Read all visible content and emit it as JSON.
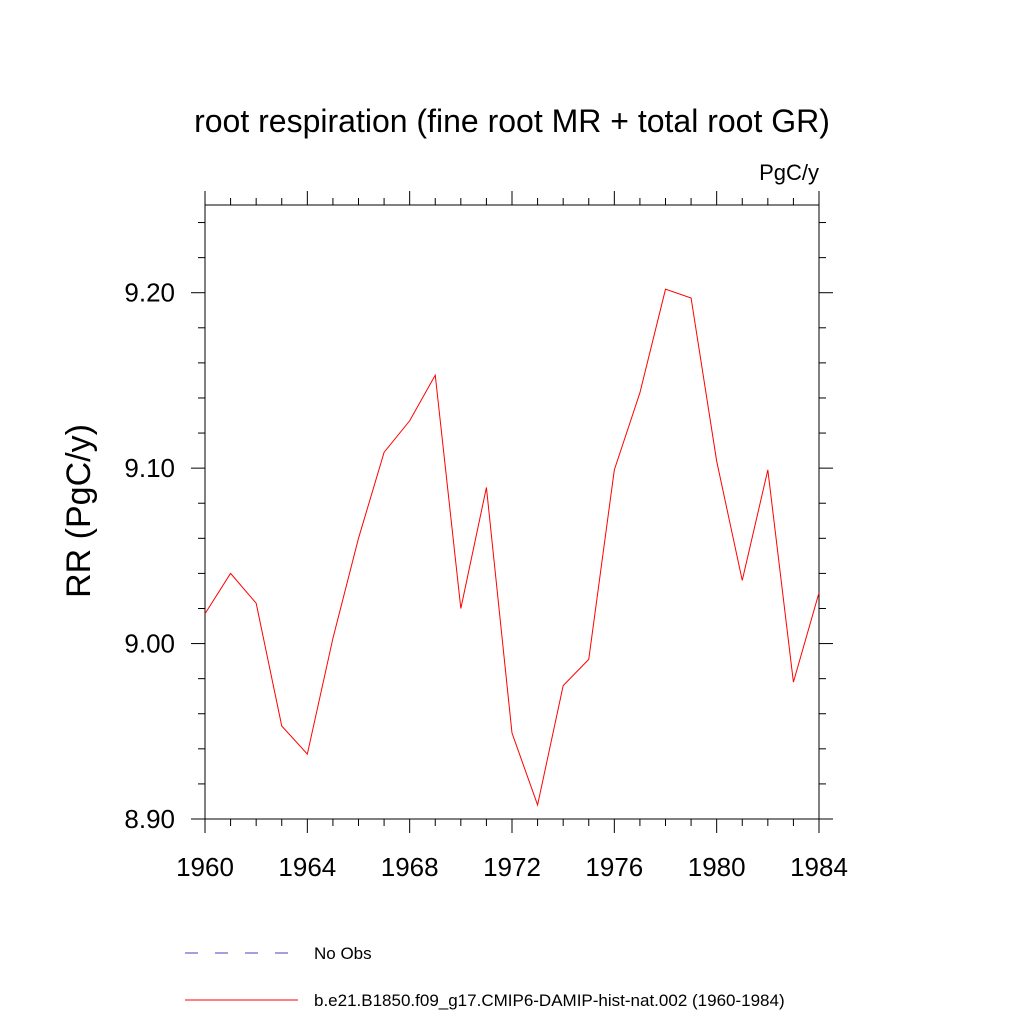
{
  "chart_data": {
    "type": "line",
    "title": "root respiration (fine root MR + total root GR)",
    "units": "PgC/y",
    "ylabel": "RR  (PgC/y)",
    "xlabel": "",
    "xlim": [
      1960,
      1984
    ],
    "ylim": [
      8.9,
      9.25
    ],
    "xticks": [
      1960,
      1964,
      1968,
      1972,
      1976,
      1980,
      1984
    ],
    "xtick_labels": [
      "1960",
      "1964",
      "1968",
      "1972",
      "1976",
      "1980",
      "1984"
    ],
    "yticks": [
      8.9,
      9.0,
      9.1,
      9.2
    ],
    "ytick_labels": [
      "8.90",
      "9.00",
      "9.10",
      "9.20"
    ],
    "grid": false,
    "legend_position": "bottom",
    "series": [
      {
        "name": "No Obs",
        "color": "#4b3fbf",
        "style": "dashed",
        "x": [],
        "values": []
      },
      {
        "name": "b.e21.B1850.f09_g17.CMIP6-DAMIP-hist-nat.002 (1960-1984)",
        "color": "#ff0000",
        "style": "solid",
        "x": [
          1960,
          1961,
          1962,
          1963,
          1964,
          1965,
          1966,
          1967,
          1968,
          1969,
          1970,
          1971,
          1972,
          1973,
          1974,
          1975,
          1976,
          1977,
          1978,
          1979,
          1980,
          1981,
          1982,
          1983,
          1984
        ],
        "values": [
          9.017,
          9.04,
          9.023,
          8.953,
          8.937,
          9.003,
          9.06,
          9.109,
          9.127,
          9.153,
          9.02,
          9.089,
          8.949,
          8.908,
          8.976,
          8.991,
          9.099,
          9.143,
          9.202,
          9.197,
          9.104,
          9.036,
          9.099,
          8.978,
          9.029
        ]
      }
    ]
  }
}
